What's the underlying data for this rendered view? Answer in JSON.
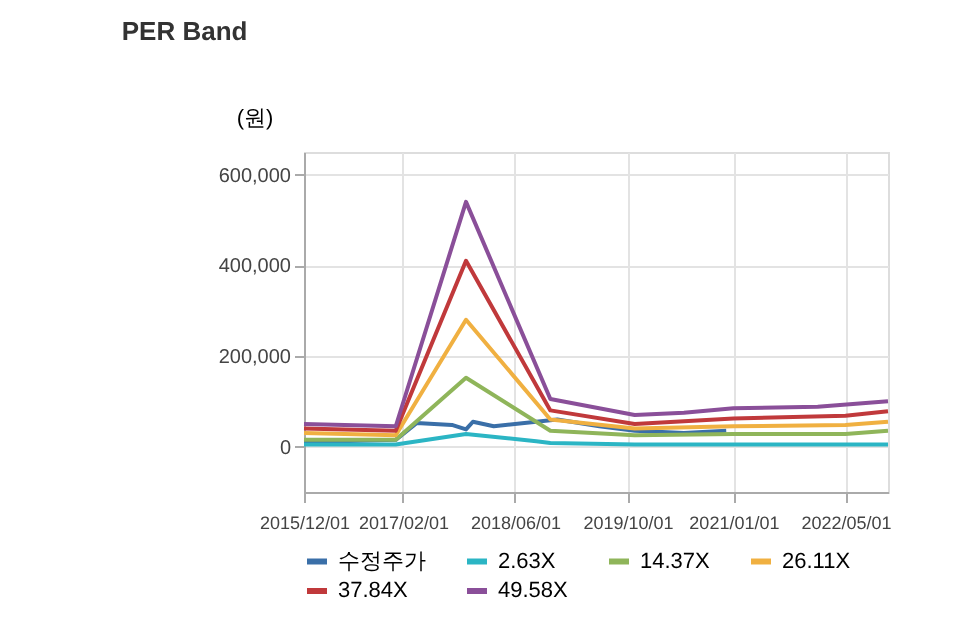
{
  "chart_data": {
    "type": "line",
    "title": "PER Band",
    "ylabel": "(원)",
    "ylim": [
      -100000,
      650000
    ],
    "yticks": [
      0,
      {
        "value": 200000,
        "label": "200,000"
      },
      {
        "value": 400000,
        "label": "400,000"
      },
      {
        "value": 600000,
        "label": "600,000"
      }
    ],
    "xlim": [
      "2015-12-01",
      "2022-11-01"
    ],
    "xticks": [
      {
        "value": "2015-12-01",
        "label": "2015/12/01"
      },
      {
        "value": "2017-02-01",
        "label": "2017/02/01"
      },
      {
        "value": "2018-06-01",
        "label": "2018/06/01"
      },
      {
        "value": "2019-10-01",
        "label": "2019/10/01"
      },
      {
        "value": "2021-01-01",
        "label": "2021/01/01"
      },
      {
        "value": "2022-05-01",
        "label": "2022/05/01"
      }
    ],
    "grid": true,
    "legend": "bottom",
    "marker": "none",
    "line_style": "solid",
    "series": [
      {
        "name": "수정주가",
        "color": "#3a6fa8",
        "x": [
          "2015-12-01",
          "2017-01-01",
          "2017-04-01",
          "2017-09-01",
          "2017-11-01",
          "2017-12-01",
          "2018-03-01",
          "2018-09-01",
          "2018-12-01",
          "2019-06-01",
          "2019-11-01",
          "2020-06-01",
          "2020-12-01"
        ],
        "values": [
          10000,
          15000,
          52000,
          48000,
          38000,
          55000,
          45000,
          55000,
          60000,
          45000,
          35000,
          30000,
          35000
        ]
      },
      {
        "name": "2.63X",
        "color": "#2bb5c4",
        "x": [
          "2015-12-01",
          "2017-01-01",
          "2017-11-01",
          "2018-09-01",
          "2018-11-01",
          "2019-11-01",
          "2022-11-01"
        ],
        "values": [
          5000,
          5000,
          28000,
          12000,
          8000,
          5000,
          5000
        ]
      },
      {
        "name": "14.37X",
        "color": "#8fb55a",
        "x": [
          "2015-12-01",
          "2017-01-01",
          "2017-11-01",
          "2018-11-01",
          "2019-11-01",
          "2021-01-01",
          "2022-05-01",
          "2022-11-01"
        ],
        "values": [
          15000,
          15000,
          152000,
          35000,
          25000,
          28000,
          28000,
          35000
        ]
      },
      {
        "name": "26.11X",
        "color": "#f0b041",
        "x": [
          "2015-12-01",
          "2017-01-01",
          "2017-11-01",
          "2018-11-01",
          "2019-11-01",
          "2021-01-01",
          "2022-05-01",
          "2022-11-01"
        ],
        "values": [
          30000,
          25000,
          280000,
          60000,
          40000,
          45000,
          48000,
          55000
        ]
      },
      {
        "name": "37.84X",
        "color": "#c0393b",
        "x": [
          "2015-12-01",
          "2017-01-01",
          "2017-11-01",
          "2018-11-01",
          "2019-11-01",
          "2021-01-01",
          "2022-05-01",
          "2022-11-01"
        ],
        "values": [
          40000,
          35000,
          410000,
          80000,
          50000,
          62000,
          68000,
          78000
        ]
      },
      {
        "name": "49.58X",
        "color": "#8a4f99",
        "x": [
          "2015-12-01",
          "2017-01-01",
          "2017-11-01",
          "2018-11-01",
          "2019-11-01",
          "2020-06-01",
          "2021-01-01",
          "2022-01-01",
          "2022-11-01"
        ],
        "values": [
          50000,
          45000,
          540000,
          105000,
          70000,
          75000,
          85000,
          88000,
          100000
        ]
      }
    ]
  }
}
